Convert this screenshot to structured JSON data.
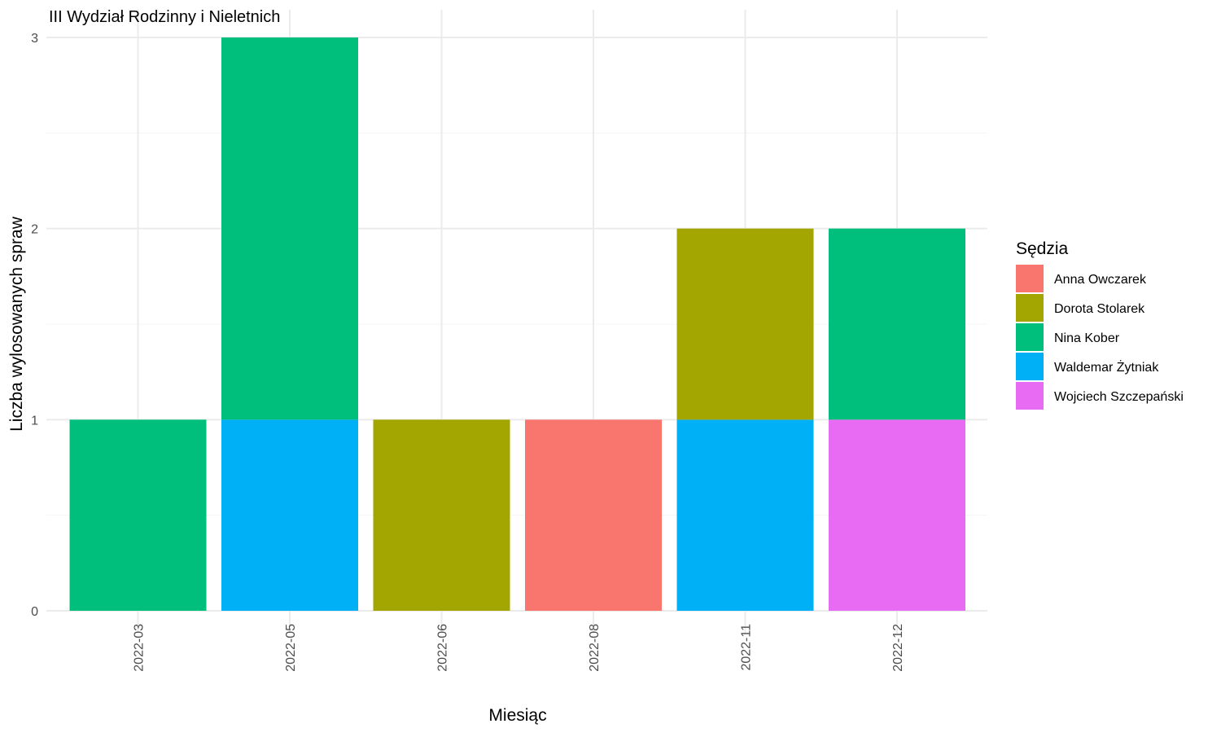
{
  "chart_data": {
    "type": "bar",
    "stacked": true,
    "title": "III Wydział Rodzinny i Nieletnich",
    "xlabel": "Miesiąc",
    "ylabel": "Liczba wylosowanych spraw",
    "ylim": [
      0,
      3
    ],
    "yticks": [
      0,
      1,
      2,
      3
    ],
    "grid": true,
    "categories": [
      "2022-03",
      "2022-05",
      "2022-06",
      "2022-08",
      "2022-11",
      "2022-12"
    ],
    "legend": {
      "title": "Sędzia",
      "position": "right"
    },
    "series": [
      {
        "name": "Anna Owczarek",
        "color": "#F8766D",
        "values": [
          0,
          0,
          0,
          1,
          0,
          0
        ]
      },
      {
        "name": "Dorota Stolarek",
        "color": "#A3A500",
        "values": [
          0,
          0,
          1,
          0,
          1,
          0
        ]
      },
      {
        "name": "Nina Kober",
        "color": "#00BF7D",
        "values": [
          1,
          2,
          0,
          0,
          0,
          1
        ]
      },
      {
        "name": "Waldemar Żytniak",
        "color": "#00B0F6",
        "values": [
          0,
          1,
          0,
          0,
          1,
          0
        ]
      },
      {
        "name": "Wojciech Szczepański",
        "color": "#E76BF3",
        "values": [
          0,
          0,
          0,
          0,
          0,
          1
        ]
      }
    ],
    "stack_order_bottom_to_top": [
      "Wojciech Szczepański",
      "Waldemar Żytniak",
      "Nina Kober",
      "Dorota Stolarek",
      "Anna Owczarek"
    ]
  }
}
